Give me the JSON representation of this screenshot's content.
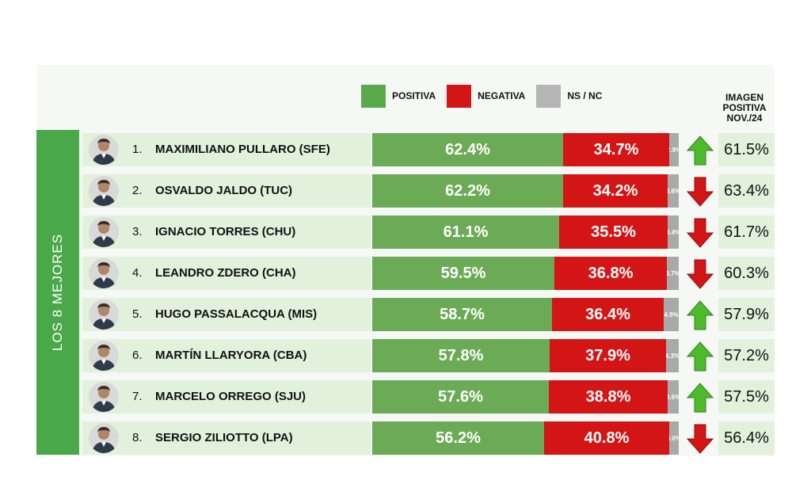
{
  "legend": [
    {
      "label": "POSITIVA",
      "color": "#5aa94a"
    },
    {
      "label": "NEGATIVA",
      "color": "#d41515"
    },
    {
      "label": "NS / NC",
      "color": "#b5b5b5"
    }
  ],
  "image_header": "IMAGEN\nPOSITIVA\nNOV./24",
  "side_label": "LOS 8 MEJORES",
  "colors": {
    "positive": "#6bab56",
    "negative": "#d41515",
    "ns": "#a9a9a9",
    "side": "#49a847",
    "up_arrow": "#4cbb2c",
    "down_arrow": "#d41515"
  },
  "chart_data": {
    "type": "bar",
    "stacked": true,
    "orientation": "horizontal",
    "categories": [
      "MAXIMILIANO PULLARO (SFE)",
      "OSVALDO JALDO (TUC)",
      "IGNACIO TORRES (CHU)",
      "LEANDRO ZDERO (CHA)",
      "HUGO PASSALACQUA (MIS)",
      "MARTÍN LLARYORA (CBA)",
      "MARCELO ORREGO (SJU)",
      "SERGIO ZILIOTTO (LPA)"
    ],
    "series": [
      {
        "name": "POSITIVA",
        "values": [
          62.4,
          62.2,
          61.1,
          59.5,
          58.7,
          57.8,
          57.6,
          56.2
        ]
      },
      {
        "name": "NEGATIVA",
        "values": [
          34.7,
          34.2,
          35.5,
          36.8,
          36.4,
          37.9,
          38.8,
          40.8
        ]
      },
      {
        "name": "NS / NC",
        "values": [
          2.9,
          3.6,
          3.4,
          3.7,
          4.9,
          4.3,
          3.6,
          3.0
        ]
      }
    ],
    "rows": [
      {
        "rank": "1.",
        "name": "MAXIMILIANO PULLARO (SFE)",
        "positiva": "62.4%",
        "negativa": "34.7%",
        "nsnc": "2.9%",
        "pos": 62.4,
        "neg": 34.7,
        "ns": 2.9,
        "trend": "up",
        "imagen_nov24": "61.5%"
      },
      {
        "rank": "2.",
        "name": "OSVALDO JALDO (TUC)",
        "positiva": "62.2%",
        "negativa": "34.2%",
        "nsnc": "3.6%",
        "pos": 62.2,
        "neg": 34.2,
        "ns": 3.6,
        "trend": "down",
        "imagen_nov24": "63.4%"
      },
      {
        "rank": "3.",
        "name": "IGNACIO TORRES (CHU)",
        "positiva": "61.1%",
        "negativa": "35.5%",
        "nsnc": "3.4%",
        "pos": 61.1,
        "neg": 35.5,
        "ns": 3.4,
        "trend": "down",
        "imagen_nov24": "61.7%"
      },
      {
        "rank": "4.",
        "name": "LEANDRO ZDERO (CHA)",
        "positiva": "59.5%",
        "negativa": "36.8%",
        "nsnc": "3.7%",
        "pos": 59.5,
        "neg": 36.8,
        "ns": 3.7,
        "trend": "down",
        "imagen_nov24": "60.3%"
      },
      {
        "rank": "5.",
        "name": "HUGO PASSALACQUA (MIS)",
        "positiva": "58.7%",
        "negativa": "36.4%",
        "nsnc": "4.9%",
        "pos": 58.7,
        "neg": 36.4,
        "ns": 4.9,
        "trend": "up",
        "imagen_nov24": "57.9%"
      },
      {
        "rank": "6.",
        "name": "MARTÍN LLARYORA (CBA)",
        "positiva": "57.8%",
        "negativa": "37.9%",
        "nsnc": "4.3%",
        "pos": 57.8,
        "neg": 37.9,
        "ns": 4.3,
        "trend": "up",
        "imagen_nov24": "57.2%"
      },
      {
        "rank": "7.",
        "name": "MARCELO ORREGO (SJU)",
        "positiva": "57.6%",
        "negativa": "38.8%",
        "nsnc": "3.6%",
        "pos": 57.6,
        "neg": 38.8,
        "ns": 3.6,
        "trend": "up",
        "imagen_nov24": "57.5%"
      },
      {
        "rank": "8.",
        "name": "SERGIO ZILIOTTO (LPA)",
        "positiva": "56.2%",
        "negativa": "40.8%",
        "nsnc": "3.0%",
        "pos": 56.2,
        "neg": 40.8,
        "ns": 3.0,
        "trend": "down",
        "imagen_nov24": "56.4%"
      }
    ]
  }
}
